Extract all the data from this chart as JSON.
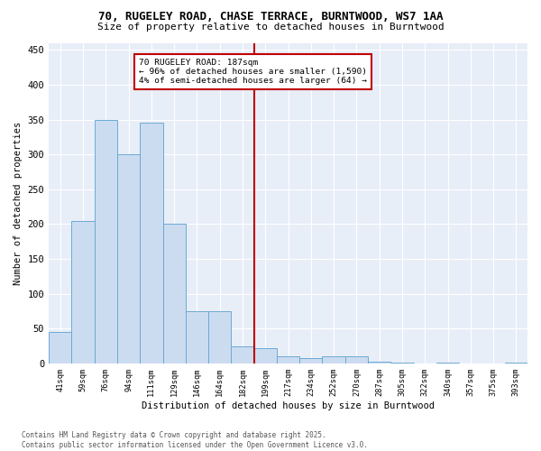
{
  "title_line1": "70, RUGELEY ROAD, CHASE TERRACE, BURNTWOOD, WS7 1AA",
  "title_line2": "Size of property relative to detached houses in Burntwood",
  "xlabel": "Distribution of detached houses by size in Burntwood",
  "ylabel": "Number of detached properties",
  "categories": [
    "41sqm",
    "59sqm",
    "76sqm",
    "94sqm",
    "111sqm",
    "129sqm",
    "146sqm",
    "164sqm",
    "182sqm",
    "199sqm",
    "217sqm",
    "234sqm",
    "252sqm",
    "270sqm",
    "287sqm",
    "305sqm",
    "322sqm",
    "340sqm",
    "357sqm",
    "375sqm",
    "393sqm"
  ],
  "values": [
    45,
    205,
    350,
    300,
    345,
    200,
    75,
    75,
    25,
    22,
    10,
    8,
    10,
    10,
    3,
    2,
    0,
    2,
    0,
    0,
    2
  ],
  "bar_color": "#ccdcf0",
  "bar_edge_color": "#6aaad4",
  "vline_x_index": 8,
  "vline_color": "#c00000",
  "annotation_title": "70 RUGELEY ROAD: 187sqm",
  "annotation_line1": "← 96% of detached houses are smaller (1,590)",
  "annotation_line2": "4% of semi-detached houses are larger (64) →",
  "annotation_box_color": "#ffffff",
  "annotation_box_edge_color": "#c00000",
  "ylim": [
    0,
    460
  ],
  "yticks": [
    0,
    50,
    100,
    150,
    200,
    250,
    300,
    350,
    400,
    450
  ],
  "outer_background": "#ffffff",
  "plot_background": "#e8eef8",
  "grid_color": "#ffffff",
  "footnote1": "Contains HM Land Registry data © Crown copyright and database right 2025.",
  "footnote2": "Contains public sector information licensed under the Open Government Licence v3.0."
}
